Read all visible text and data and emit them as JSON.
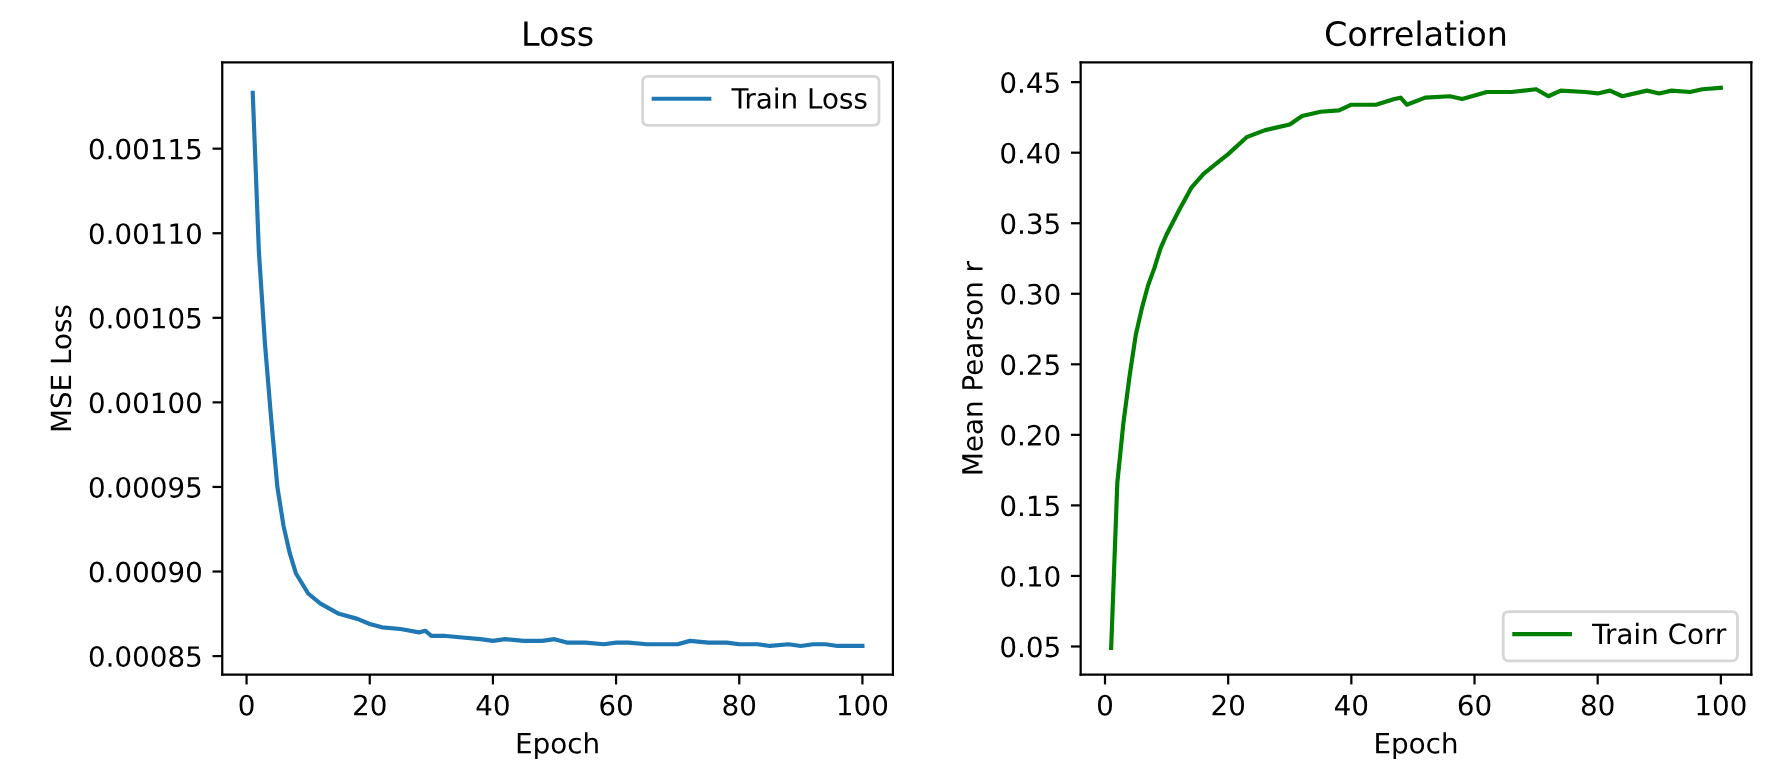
{
  "chart_data": [
    {
      "type": "line",
      "title": "Loss",
      "xlabel": "Epoch",
      "ylabel": "MSE Loss",
      "legend": "top right",
      "grid": false,
      "xlim": [
        -3.95,
        104.95
      ],
      "xticks": [
        0,
        20,
        40,
        60,
        80,
        100
      ],
      "ylim": [
        0.000839,
        0.001201
      ],
      "yticks": [
        {
          "value": 0.00085,
          "label": "0.00085"
        },
        {
          "value": 0.0009,
          "label": "0.00090"
        },
        {
          "value": 0.00095,
          "label": "0.00095"
        },
        {
          "value": 0.001,
          "label": "0.00100"
        },
        {
          "value": 0.00105,
          "label": "0.00105"
        },
        {
          "value": 0.0011,
          "label": "0.00110"
        },
        {
          "value": 0.00115,
          "label": "0.00115"
        }
      ],
      "series": [
        {
          "name": "Train Loss",
          "color": "#1f77b4",
          "x": [
            1,
            2,
            3,
            4,
            5,
            6,
            7,
            8,
            10,
            12,
            15,
            18,
            20,
            22,
            25,
            28,
            29,
            30,
            32,
            35,
            38,
            40,
            42,
            45,
            48,
            50,
            52,
            55,
            58,
            60,
            62,
            65,
            68,
            70,
            72,
            75,
            78,
            80,
            83,
            85,
            88,
            90,
            92,
            94,
            96,
            100
          ],
          "values": [
            0.001183,
            0.001089,
            0.001034,
            0.00099,
            0.00095,
            0.000927,
            0.000911,
            0.000899,
            0.000887,
            0.000881,
            0.000875,
            0.000872,
            0.000869,
            0.000867,
            0.000866,
            0.000864,
            0.000865,
            0.000862,
            0.000862,
            0.000861,
            0.00086,
            0.000859,
            0.00086,
            0.000859,
            0.000859,
            0.00086,
            0.000858,
            0.000858,
            0.000857,
            0.000858,
            0.000858,
            0.000857,
            0.000857,
            0.000857,
            0.000859,
            0.000858,
            0.000858,
            0.000857,
            0.000857,
            0.000856,
            0.000857,
            0.000856,
            0.000857,
            0.000857,
            0.000856,
            0.000856
          ]
        }
      ]
    },
    {
      "type": "line",
      "title": "Correlation",
      "xlabel": "Epoch",
      "ylabel": "Mean Pearson r",
      "legend": "bottom right",
      "grid": false,
      "xlim": [
        -3.95,
        104.95
      ],
      "xticks": [
        0,
        20,
        40,
        60,
        80,
        100
      ],
      "ylim": [
        0.03,
        0.464
      ],
      "yticks": [
        {
          "value": 0.05,
          "label": "0.05"
        },
        {
          "value": 0.1,
          "label": "0.10"
        },
        {
          "value": 0.15,
          "label": "0.15"
        },
        {
          "value": 0.2,
          "label": "0.20"
        },
        {
          "value": 0.25,
          "label": "0.25"
        },
        {
          "value": 0.3,
          "label": "0.30"
        },
        {
          "value": 0.35,
          "label": "0.35"
        },
        {
          "value": 0.4,
          "label": "0.40"
        },
        {
          "value": 0.45,
          "label": "0.45"
        }
      ],
      "series": [
        {
          "name": "Train Corr",
          "color": "#008000",
          "x": [
            1,
            2,
            3,
            4,
            5,
            6,
            7,
            8,
            9,
            10,
            12,
            14,
            16,
            18,
            20,
            23,
            26,
            30,
            32,
            35,
            38,
            40,
            44,
            47,
            48,
            49,
            52,
            56,
            58,
            62,
            66,
            70,
            72,
            74,
            78,
            80,
            82,
            84,
            88,
            90,
            92,
            95,
            97,
            100
          ],
          "values": [
            0.049,
            0.166,
            0.209,
            0.242,
            0.271,
            0.29,
            0.306,
            0.318,
            0.332,
            0.342,
            0.359,
            0.375,
            0.385,
            0.392,
            0.399,
            0.411,
            0.416,
            0.42,
            0.426,
            0.429,
            0.43,
            0.434,
            0.434,
            0.438,
            0.439,
            0.434,
            0.439,
            0.44,
            0.438,
            0.443,
            0.443,
            0.445,
            0.44,
            0.444,
            0.443,
            0.442,
            0.444,
            0.44,
            0.444,
            0.442,
            0.444,
            0.443,
            0.445,
            0.446
          ]
        }
      ]
    }
  ]
}
